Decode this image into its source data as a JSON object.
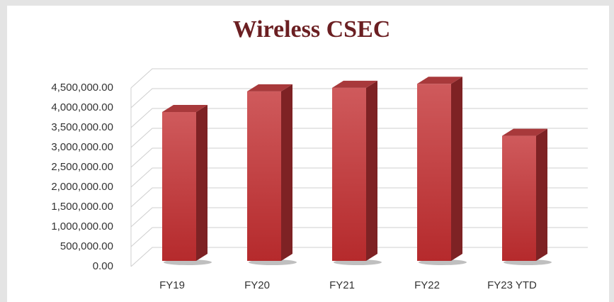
{
  "chart_data": {
    "type": "bar3d",
    "title": "Wireless CSEC",
    "categories": [
      "FY19",
      "FY20",
      "FY21",
      "FY22",
      "FY23 YTD"
    ],
    "values": [
      3750000,
      4270000,
      4360000,
      4460000,
      3150000
    ],
    "color": "#c0393b",
    "ylim": [
      0,
      4500000
    ],
    "yticks": [
      {
        "value": 0,
        "label": "0.00"
      },
      {
        "value": 500000,
        "label": "500,000.00"
      },
      {
        "value": 1000000,
        "label": "1,000,000.00"
      },
      {
        "value": 1500000,
        "label": "1,500,000.00"
      },
      {
        "value": 2000000,
        "label": "2,000,000.00"
      },
      {
        "value": 2500000,
        "label": "2,500,000.00"
      },
      {
        "value": 3000000,
        "label": "3,000,000.00"
      },
      {
        "value": 3500000,
        "label": "3,500,000.00"
      },
      {
        "value": 4000000,
        "label": "4,000,000.00"
      },
      {
        "value": 4500000,
        "label": "4,500,000.00"
      }
    ],
    "grid": true
  }
}
